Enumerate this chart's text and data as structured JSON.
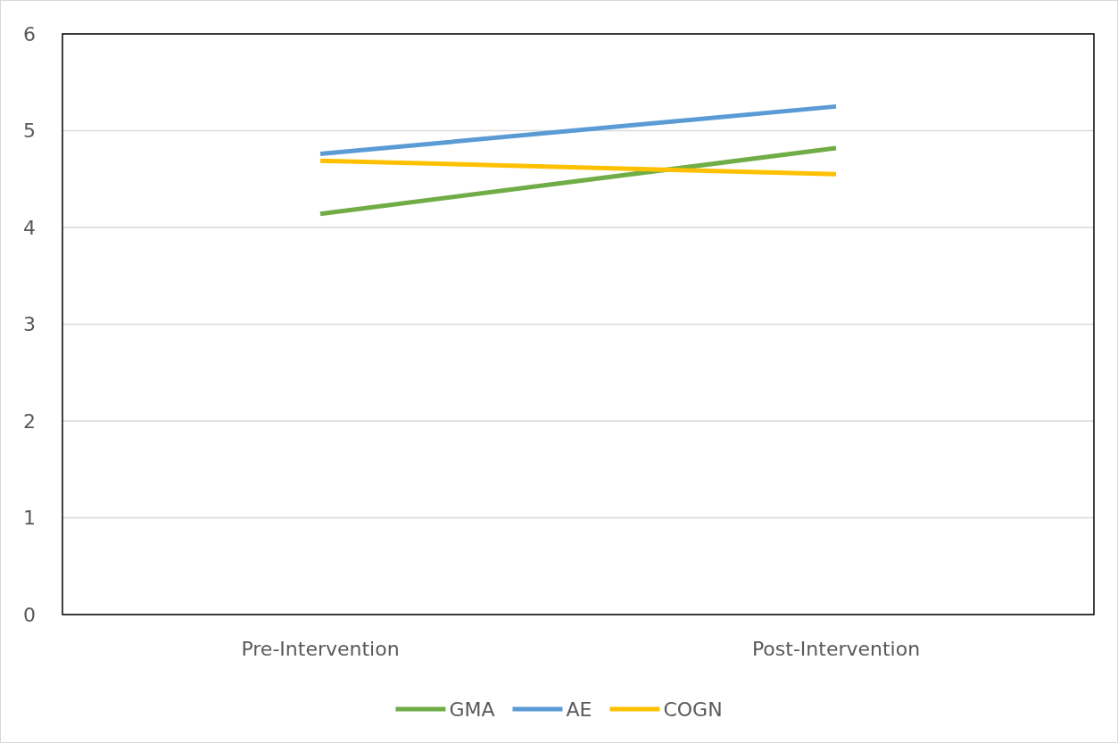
{
  "chart_data": {
    "type": "line",
    "categories": [
      "Pre-Intervention",
      "Post-Intervention"
    ],
    "series": [
      {
        "name": "GMA",
        "color": "#70ad47",
        "values": [
          4.14,
          4.82
        ]
      },
      {
        "name": "AE",
        "color": "#5b9bd5",
        "values": [
          4.76,
          5.25
        ]
      },
      {
        "name": "COGN",
        "color": "#ffc000",
        "values": [
          4.69,
          4.55
        ]
      }
    ],
    "ylim": [
      0,
      6
    ],
    "yticks": [
      0,
      1,
      2,
      3,
      4,
      5,
      6
    ],
    "grid": "y",
    "legend": "bottom",
    "marker": "none",
    "line_style": "solid"
  }
}
